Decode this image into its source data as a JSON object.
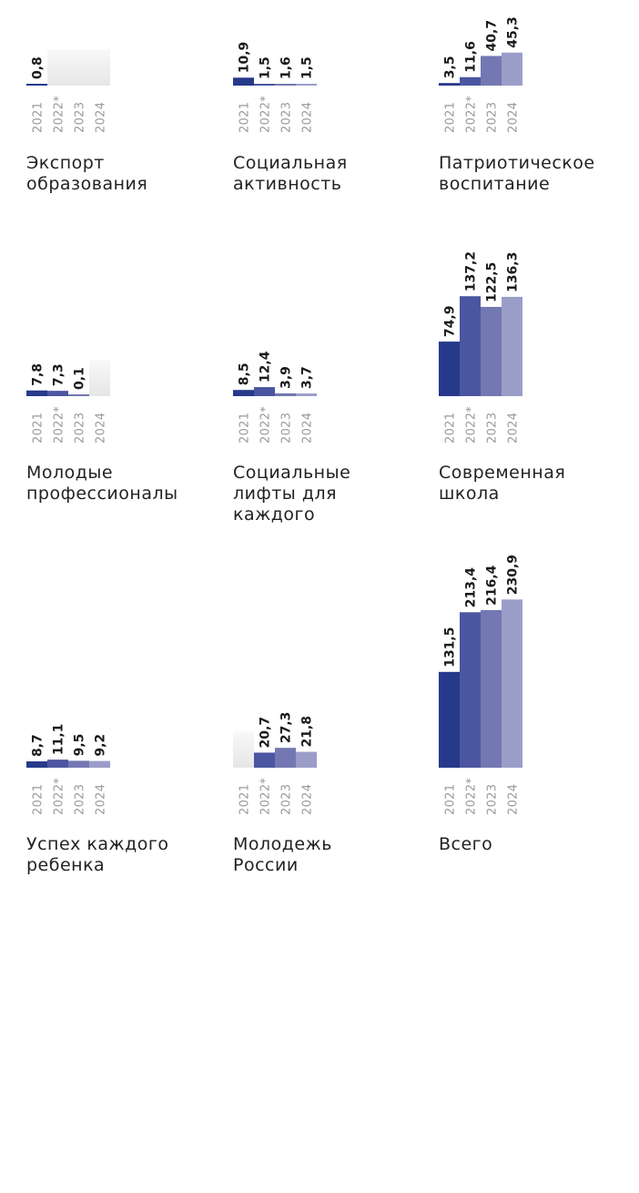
{
  "chart_data": [
    {
      "type": "bar",
      "title": "Экспорт образования",
      "title_lines": [
        "Экспорт",
        "образования"
      ],
      "categories": [
        "2021",
        "2022*",
        "2023",
        "2024"
      ],
      "values": [
        0.8,
        null,
        null,
        null
      ],
      "labels": [
        "0,8",
        "",
        "",
        ""
      ]
    },
    {
      "type": "bar",
      "title": "Социальная активность",
      "title_lines": [
        "Социальная",
        "активность"
      ],
      "categories": [
        "2021",
        "2022*",
        "2023",
        "2024"
      ],
      "values": [
        10.9,
        1.5,
        1.6,
        1.5
      ],
      "labels": [
        "10,9",
        "1,5",
        "1,6",
        "1,5"
      ]
    },
    {
      "type": "bar",
      "title": "Патриотическое воспитание",
      "title_lines": [
        "Патриотическое",
        "воспитание"
      ],
      "categories": [
        "2021",
        "2022*",
        "2023",
        "2024"
      ],
      "values": [
        3.5,
        11.6,
        40.7,
        45.3
      ],
      "labels": [
        "3,5",
        "11,6",
        "40,7",
        "45,3"
      ]
    },
    {
      "type": "bar",
      "title": "Молодые профессионалы",
      "title_lines": [
        "Молодые",
        "профессионалы"
      ],
      "categories": [
        "2021",
        "2022*",
        "2023",
        "2024"
      ],
      "values": [
        7.8,
        7.3,
        0.1,
        null
      ],
      "labels": [
        "7,8",
        "7,3",
        "0,1",
        ""
      ]
    },
    {
      "type": "bar",
      "title": "Социальные лифты для каждого",
      "title_lines": [
        "Социальные",
        "лифты для",
        "каждого"
      ],
      "categories": [
        "2021",
        "2022*",
        "2023",
        "2024"
      ],
      "values": [
        8.5,
        12.4,
        3.9,
        3.7
      ],
      "labels": [
        "8,5",
        "12,4",
        "3,9",
        "3,7"
      ]
    },
    {
      "type": "bar",
      "title": "Современная школа",
      "title_lines": [
        "Современная",
        "школа"
      ],
      "categories": [
        "2021",
        "2022*",
        "2023",
        "2024"
      ],
      "values": [
        74.9,
        137.2,
        122.5,
        136.3
      ],
      "labels": [
        "74,9",
        "137,2",
        "122,5",
        "136,3"
      ]
    },
    {
      "type": "bar",
      "title": "Успех каждого ребенка",
      "title_lines": [
        "Успех каждого",
        "ребенка"
      ],
      "categories": [
        "2021",
        "2022*",
        "2023",
        "2024"
      ],
      "values": [
        8.7,
        11.1,
        9.5,
        9.2
      ],
      "labels": [
        "8,7",
        "11,1",
        "9,5",
        "9,2"
      ]
    },
    {
      "type": "bar",
      "title": "Молодежь России",
      "title_lines": [
        "Молодежь",
        "России"
      ],
      "categories": [
        "2021",
        "2022*",
        "2023",
        "2024"
      ],
      "values": [
        null,
        20.7,
        27.3,
        21.8
      ],
      "labels": [
        "",
        "20,7",
        "27,3",
        "21,8"
      ]
    },
    {
      "type": "bar",
      "title": "Всего",
      "title_lines": [
        "Всего"
      ],
      "categories": [
        "2021",
        "2022*",
        "2023",
        "2024"
      ],
      "values": [
        131.5,
        213.4,
        216.4,
        230.9
      ],
      "labels": [
        "131,5",
        "213,4",
        "216,4",
        "230,9"
      ]
    }
  ],
  "colors": {
    "series": [
      "#26398a",
      "#4b56a0",
      "#7378b2",
      "#9b9dc9"
    ],
    "missing_fill": "#e6e6e6",
    "text": "#222222",
    "year_text": "#999999"
  }
}
